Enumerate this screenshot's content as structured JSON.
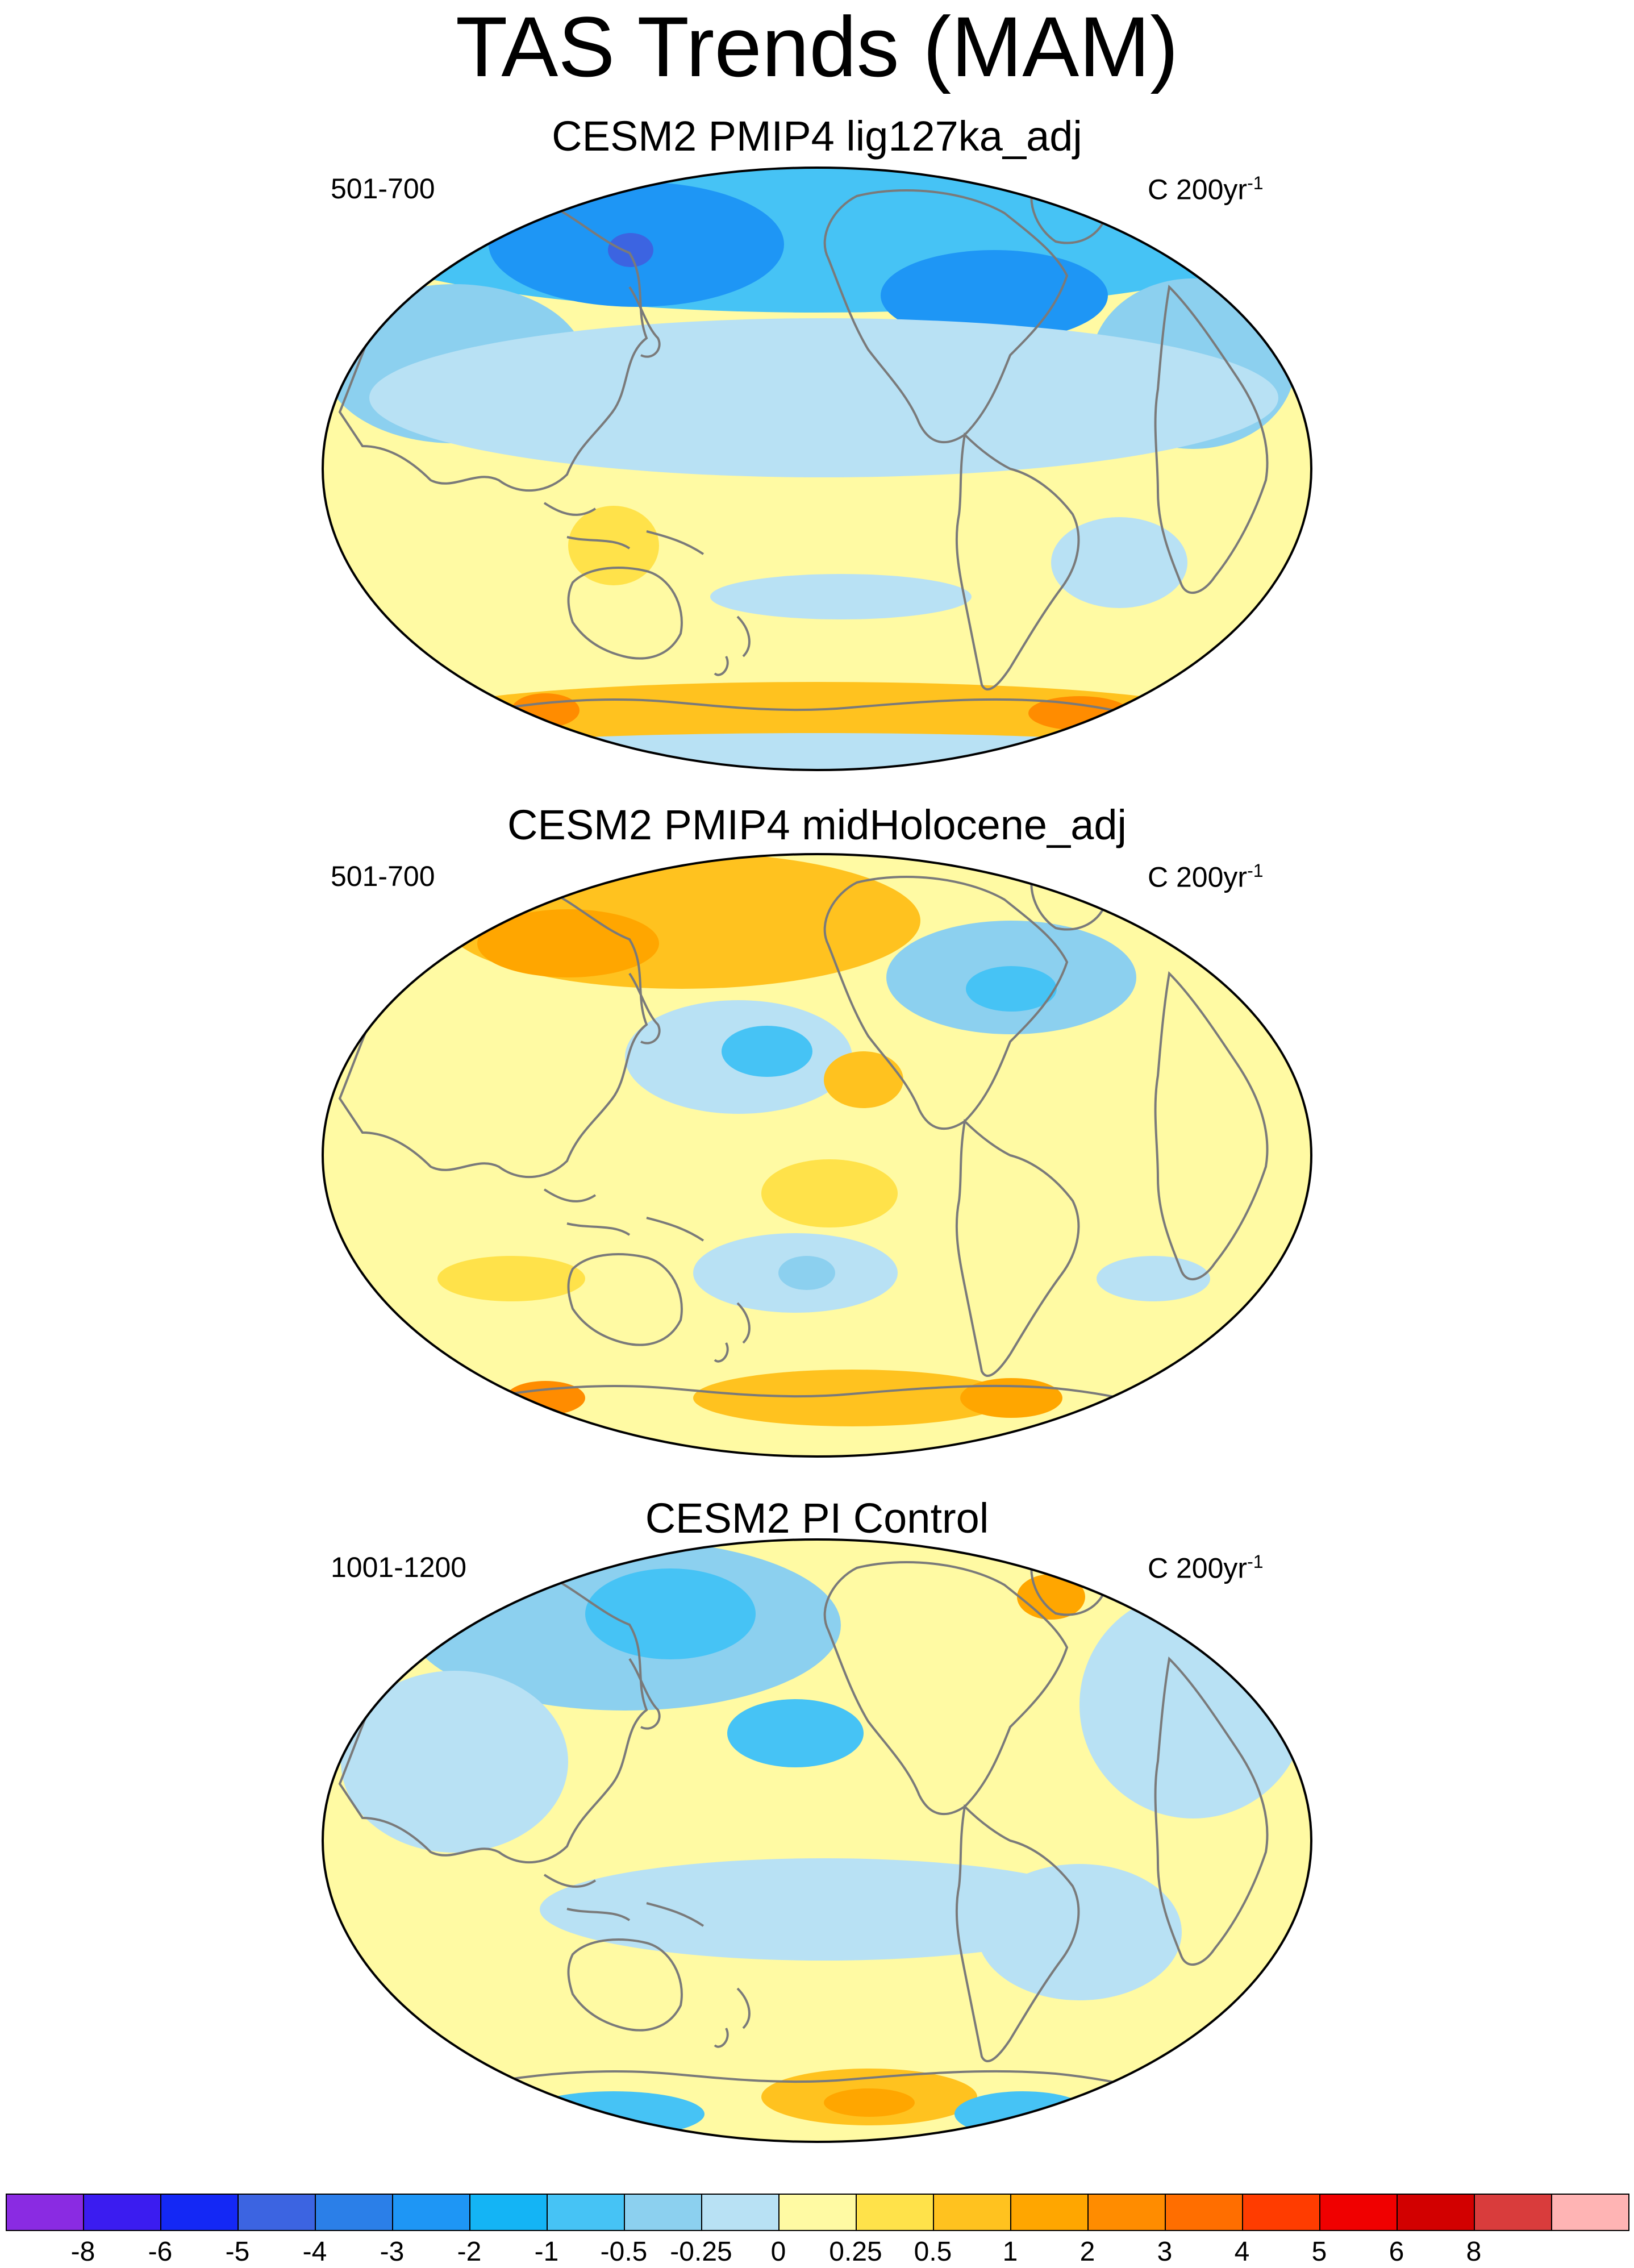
{
  "title": "TAS Trends (MAM)",
  "panels": [
    {
      "title": "CESM2 PMIP4 lig127ka_adj",
      "period": "501-700",
      "units_base": "C 200yr",
      "units_sup": "-1"
    },
    {
      "title": "CESM2 PMIP4 midHolocene_adj",
      "period": "501-700",
      "units_base": "C 200yr",
      "units_sup": "-1"
    },
    {
      "title": "CESM2 PI Control",
      "period": "1001-1200",
      "units_base": "C 200yr",
      "units_sup": "-1"
    }
  ],
  "projection": "Robinson-like global, centered on the Pacific",
  "colorbar": {
    "colors": [
      "#8a2be2",
      "#3b1cf0",
      "#1428f5",
      "#3c64e1",
      "#2b7fe8",
      "#1e96f5",
      "#14b4f5",
      "#46c3f5",
      "#8cd0ef",
      "#b8e1f4",
      "#fffaa3",
      "#ffe24a",
      "#ffc21f",
      "#ffa600",
      "#ff8c00",
      "#ff6e00",
      "#ff3c00",
      "#f00000",
      "#d20000",
      "#d93c3c",
      "#ffb4b4"
    ],
    "labels": [
      "-8",
      "-6",
      "-5",
      "-4",
      "-3",
      "-2",
      "-1",
      "-0.5",
      "-0.25",
      "0",
      "0.25",
      "0.5",
      "1",
      "2",
      "3",
      "4",
      "5",
      "6",
      "8"
    ]
  }
}
